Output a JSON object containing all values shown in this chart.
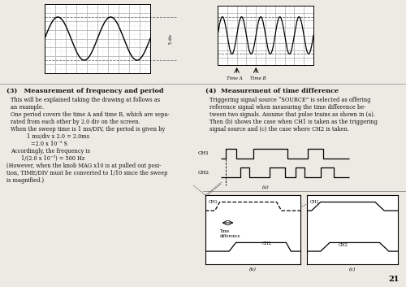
{
  "bg_color": "#ede9e3",
  "text_color": "#111111",
  "section3_title": "(3)   Measurement of frequency and period",
  "section3_body_indent": [
    "This will be explained taking the drawing at follows as",
    "an example.",
    "One period covers the time A and time B, which are sepa-",
    "rated from each other by 2.0 div on the screen.",
    "When the sweep time is 1 ms/DIV, the period is given by"
  ],
  "section3_body_formula": [
    "1 ms/div x 2.0 = 2.0ms",
    "=2.0 x 10⁻³ S",
    "Accordingly, the frequency is",
    "1/(2.0 x 10⁻³) = 500 Hz"
  ],
  "section3_body_footer": [
    "(However, when the knob MAG x10 is at pulled out posi-",
    "tion, TIME/DIV must be converted to 1/10 since the sweep",
    "is magnified.)"
  ],
  "section4_title": "(4)  Measurement of time difference",
  "section4_body": [
    "Triggering signal source “SOURCE” is selected as offering",
    "reference signal when measuring the time difference be-",
    "tween two signals. Assume that pulse trains as shown in (a).",
    "Then (b) shows the case when CH1 is taken as the triggering",
    "signal source and (c) the case where CH2 is taken."
  ],
  "page_number": "21",
  "time_a_label": "Time A",
  "time_b_label": "Time B",
  "ch1_label": "CH1",
  "ch2_label": "CH2",
  "time_diff_label": "Time\ndifference",
  "label_a": "(a)",
  "label_b": "(b)",
  "label_c": "(c)",
  "grid_color": "#aaaaaa",
  "subgrid_color": "#cccccc",
  "wave_color": "#000000",
  "dashed_color": "#777777",
  "div_label": "5 div"
}
